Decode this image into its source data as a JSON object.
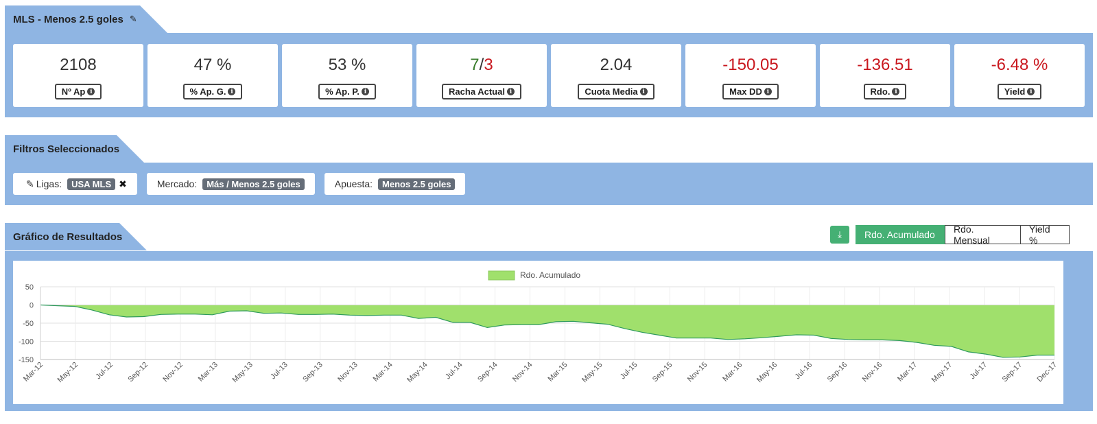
{
  "header": {
    "title": "MLS - Menos 2.5 goles",
    "edit_icon": "pencil-icon"
  },
  "stats": [
    {
      "value": "2108",
      "label": "Nº Ap",
      "color": "#333333"
    },
    {
      "value": "47 %",
      "label": "% Ap. G.",
      "color": "#333333"
    },
    {
      "value": "53 %",
      "label": "% Ap. P.",
      "color": "#333333"
    },
    {
      "value_win": "7",
      "value_sep": "/",
      "value_loss": "3",
      "label": "Racha Actual"
    },
    {
      "value": "2.04",
      "label": "Cuota Media",
      "color": "#333333"
    },
    {
      "value": "-150.05",
      "label": "Max DD",
      "color": "#c9171e"
    },
    {
      "value": "-136.51",
      "label": "Rdo.",
      "color": "#c9171e"
    },
    {
      "value": "-6.48 %",
      "label": "Yield",
      "color": "#c9171e"
    }
  ],
  "filters": {
    "title": "Filtros Seleccionados",
    "items": [
      {
        "label": "Ligas:",
        "tag": "USA MLS"
      },
      {
        "label": "Mercado:",
        "tag": "Más / Menos 2.5 goles"
      },
      {
        "label": "Apuesta:",
        "tag": "Menos 2.5 goles"
      }
    ]
  },
  "results": {
    "title": "Gráfico de Resultados",
    "buttons": {
      "accumulated": "Rdo. Acumulado",
      "monthly": "Rdo. Mensual",
      "yield": "Yield %"
    }
  },
  "colors": {
    "band": "#8fb5e3",
    "accent_green": "#45b074",
    "area_fill": "#a0e06c",
    "area_line": "#2e9a5c",
    "negative": "#c9171e"
  },
  "chart_data": {
    "type": "area",
    "legend": [
      "Rdo. Acumulado"
    ],
    "legend_position": "top",
    "grid": true,
    "ylim": [
      -150,
      50
    ],
    "yticks": [
      50,
      0,
      -50,
      -100,
      -150
    ],
    "xticks": [
      "Mar-12",
      "May-12",
      "Jul-12",
      "Sep-12",
      "Nov-12",
      "Mar-13",
      "May-13",
      "Jul-13",
      "Sep-13",
      "Nov-13",
      "Mar-14",
      "May-14",
      "Jul-14",
      "Sep-14",
      "Nov-14",
      "Mar-15",
      "May-15",
      "Jul-15",
      "Sep-15",
      "Nov-15",
      "Mar-16",
      "May-16",
      "Jul-16",
      "Sep-16",
      "Nov-16",
      "Mar-17",
      "May-17",
      "Jul-17",
      "Sep-17",
      "Dec-17"
    ],
    "series": [
      {
        "name": "Rdo. Acumulado",
        "values": [
          0,
          -2,
          -4,
          -14,
          -27,
          -33,
          -32,
          -26,
          -25,
          -25,
          -27,
          -17,
          -16,
          -23,
          -22,
          -26,
          -26,
          -25,
          -28,
          -29,
          -28,
          -28,
          -37,
          -34,
          -48,
          -48,
          -62,
          -55,
          -54,
          -54,
          -46,
          -45,
          -49,
          -53,
          -65,
          -75,
          -83,
          -91,
          -91,
          -91,
          -95,
          -93,
          -90,
          -86,
          -82,
          -83,
          -92,
          -95,
          -96,
          -96,
          -98,
          -103,
          -111,
          -114,
          -129,
          -135,
          -144,
          -143,
          -138,
          -138
        ]
      }
    ]
  }
}
